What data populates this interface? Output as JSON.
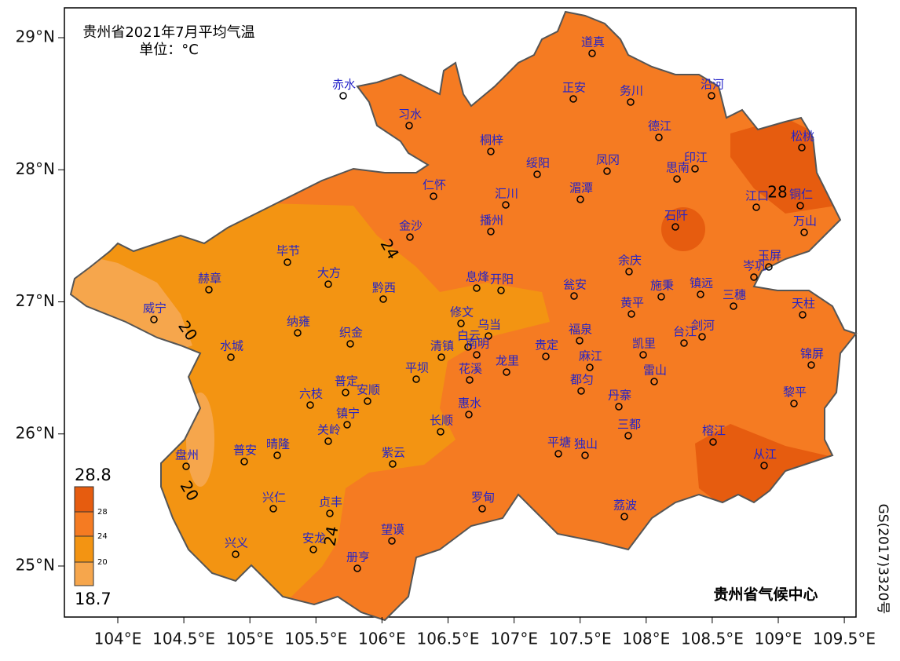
{
  "map": {
    "title": "贵州省2021年7月平均气温",
    "unit": "单位：°C",
    "xticks": [
      {
        "value": 104,
        "label": "104°E"
      },
      {
        "value": 104.5,
        "label": "104.5°E"
      },
      {
        "value": 105,
        "label": "105°E"
      },
      {
        "value": 105.5,
        "label": "105.5°E"
      },
      {
        "value": 106,
        "label": "106°E"
      },
      {
        "value": 106.5,
        "label": "106.5°E"
      },
      {
        "value": 107,
        "label": "107°E"
      },
      {
        "value": 107.5,
        "label": "107.5°E"
      },
      {
        "value": 108,
        "label": "108°E"
      },
      {
        "value": 108.5,
        "label": "108.5°E"
      },
      {
        "value": 109,
        "label": "109°E"
      },
      {
        "value": 109.5,
        "label": "109.5°E"
      }
    ],
    "yticks": [
      {
        "value": 25,
        "label": "25°N"
      },
      {
        "value": 26,
        "label": "26°N"
      },
      {
        "value": 27,
        "label": "27°N"
      },
      {
        "value": 28,
        "label": "28°N"
      },
      {
        "value": 29,
        "label": "29°N"
      }
    ],
    "stations": [
      "道真",
      "正安",
      "务川",
      "沿河",
      "赤水",
      "习水",
      "桐梓",
      "德江",
      "松桃",
      "印江",
      "思南",
      "凤冈",
      "绥阳",
      "仁怀",
      "汇川",
      "湄潭",
      "江口",
      "铜仁",
      "万山",
      "石阡",
      "金沙",
      "播州",
      "毕节",
      "余庆",
      "岑巩",
      "玉屏",
      "赫章",
      "大方",
      "黔西",
      "息烽",
      "开阳",
      "瓮安",
      "施秉",
      "镇远",
      "三穗",
      "天柱",
      "威宁",
      "黄平",
      "修文",
      "纳雍",
      "织金",
      "福泉",
      "台江",
      "剑河",
      "白云",
      "乌当",
      "南明",
      "水城",
      "清镇",
      "贵定",
      "凯里",
      "锦屏",
      "麻江",
      "龙里",
      "花溪",
      "平坝",
      "雷山",
      "普定",
      "安顺",
      "六枝",
      "都匀",
      "黎平",
      "丹寨",
      "惠水",
      "镇宁",
      "长顺",
      "三都",
      "关岭",
      "榕江",
      "平塘",
      "独山",
      "晴隆",
      "普安",
      "紫云",
      "从江",
      "盘州",
      "兴仁",
      "贞丰",
      "罗甸",
      "荔波",
      "望谟",
      "兴义",
      "安龙",
      "册亨"
    ],
    "contour_labels": [
      "24",
      "20",
      "20",
      "24",
      "28"
    ],
    "legend": {
      "max": 28.8,
      "min": 18.7,
      "levels": [
        28,
        24,
        20
      ],
      "colors": [
        "#e65c0f",
        "#f57b22",
        "#f39412",
        "#f6a64c"
      ]
    },
    "footer": "贵州省气候中心",
    "approval": "GS(2017)3320号"
  }
}
